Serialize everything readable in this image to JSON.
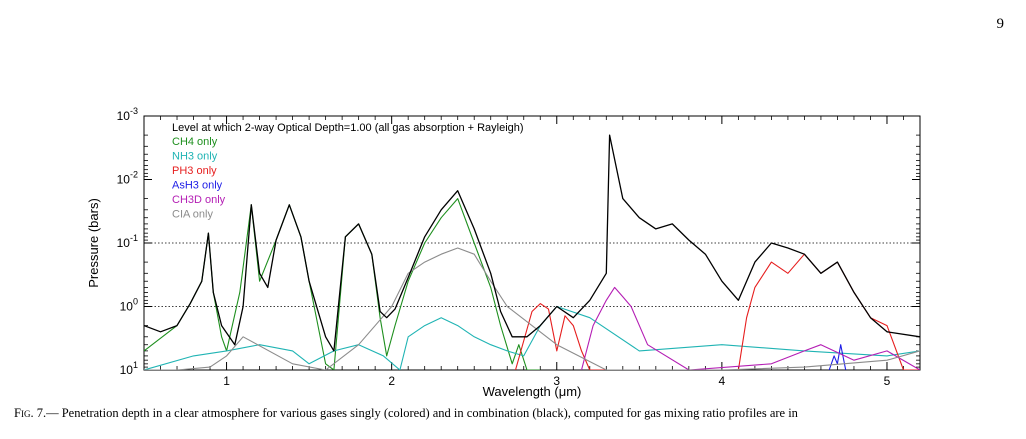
{
  "page": {
    "number": "9"
  },
  "figure": {
    "label": "Fig. 7.",
    "caption": "— Penetration depth in a clear atmosphere for various gases singly (colored) and in combination (black), computed for gas mixing ratio profiles are in"
  },
  "chart_data": {
    "type": "line",
    "title": "Level at which 2-way Optical Depth=1.00 (all gas absorption + Rayleigh)",
    "xlabel": "Wavelength (μm)",
    "ylabel": "Pressure (bars)",
    "xlim": [
      0.5,
      5.2
    ],
    "ylim": [
      10,
      0.001
    ],
    "y_scale": "log",
    "y_inverted": true,
    "grid": "dotted lines at 0.1 and 1 bar",
    "legend_position": "top-left",
    "x_ticks": [
      1,
      2,
      3,
      4,
      5
    ],
    "x_tick_labels": [
      "1",
      "2",
      "3",
      "4",
      "5"
    ],
    "y_ticks": [
      10,
      1,
      0.1,
      0.01,
      0.001
    ],
    "y_tick_labels": [
      {
        "base": "10",
        "exp": "1"
      },
      {
        "base": "10",
        "exp": "0"
      },
      {
        "base": "10",
        "exp": "-1"
      },
      {
        "base": "10",
        "exp": "-2"
      },
      {
        "base": "10",
        "exp": "-3"
      }
    ],
    "series": [
      {
        "name": "CH4 only",
        "color": "#1e8f1e",
        "x": [
          0.5,
          0.7,
          0.78,
          0.85,
          0.89,
          0.92,
          0.97,
          1.0,
          1.08,
          1.15,
          1.2,
          1.3,
          1.38,
          1.45,
          1.5,
          1.6,
          1.65,
          1.72,
          1.8,
          1.88,
          1.93,
          1.97,
          2.02,
          2.1,
          2.2,
          2.3,
          2.4,
          2.5,
          2.6,
          2.66,
          2.73,
          2.77,
          2.82,
          2.86,
          2.9
        ],
        "y": [
          5,
          2,
          0.9,
          0.4,
          0.07,
          0.6,
          3,
          5,
          0.6,
          0.025,
          0.4,
          0.09,
          0.025,
          0.08,
          0.4,
          8,
          10,
          0.08,
          0.05,
          0.15,
          1.5,
          6,
          2,
          0.4,
          0.1,
          0.04,
          0.02,
          0.1,
          0.5,
          2,
          8,
          4,
          10,
          10,
          10
        ]
      },
      {
        "name": "NH3 only",
        "color": "#20b4b4",
        "x": [
          0.5,
          0.8,
          1.0,
          1.2,
          1.4,
          1.5,
          1.65,
          1.8,
          1.95,
          2.05,
          2.1,
          2.2,
          2.3,
          2.4,
          2.5,
          2.6,
          2.7,
          2.8,
          2.9,
          3.0,
          3.2,
          3.5,
          4.0,
          4.5,
          5.0,
          5.2
        ],
        "y": [
          10,
          6,
          5,
          4,
          5,
          8,
          5,
          4,
          6,
          10,
          3,
          2,
          1.5,
          2,
          3,
          4,
          5,
          6,
          2,
          1,
          1.5,
          5,
          4,
          5,
          6,
          5
        ]
      },
      {
        "name": "PH3 only",
        "color": "#e61e1e",
        "x": [
          2.75,
          2.85,
          2.9,
          2.95,
          3.0,
          3.05,
          3.1,
          3.15,
          3.2,
          4.1,
          4.15,
          4.2,
          4.3,
          4.4,
          4.5,
          4.6,
          4.7,
          4.8,
          4.9,
          5.0,
          5.1,
          5.2
        ],
        "y": [
          10,
          1.2,
          0.9,
          1.1,
          5,
          1.4,
          2,
          5,
          10,
          10,
          1.5,
          0.5,
          0.2,
          0.3,
          0.15,
          0.3,
          0.2,
          0.6,
          1.5,
          2,
          10,
          10
        ]
      },
      {
        "name": "AsH3 only",
        "color": "#1e1ee6",
        "x": [
          4.65,
          4.68,
          4.7,
          4.72,
          4.75
        ],
        "y": [
          10,
          6,
          8,
          4,
          10
        ]
      },
      {
        "name": "CH3D only",
        "color": "#b41eb4",
        "x": [
          3.15,
          3.22,
          3.3,
          3.35,
          3.4,
          3.45,
          3.55,
          3.8,
          4.3,
          4.5,
          4.6,
          4.8,
          5.0,
          5.2
        ],
        "y": [
          10,
          2,
          0.8,
          0.5,
          0.7,
          1,
          4,
          10,
          8,
          5,
          4,
          7,
          5,
          10
        ]
      },
      {
        "name": "CIA only",
        "color": "#8c8c8c",
        "x": [
          0.5,
          0.7,
          0.9,
          1.0,
          1.1,
          1.4,
          1.6,
          1.8,
          2.0,
          2.1,
          2.2,
          2.3,
          2.4,
          2.5,
          2.6,
          2.7,
          3.0,
          3.3,
          3.6,
          4.0,
          4.5,
          5.0,
          5.2
        ],
        "y": [
          10,
          10,
          9,
          6,
          3,
          8,
          10,
          4,
          1,
          0.3,
          0.2,
          0.15,
          0.12,
          0.15,
          0.4,
          1,
          4,
          10,
          10,
          10,
          9,
          7,
          5
        ]
      },
      {
        "name": "",
        "color": "#000000",
        "x": [
          0.5,
          0.6,
          0.7,
          0.78,
          0.85,
          0.89,
          0.92,
          0.97,
          1.05,
          1.1,
          1.15,
          1.2,
          1.25,
          1.3,
          1.38,
          1.45,
          1.5,
          1.6,
          1.65,
          1.72,
          1.8,
          1.88,
          1.93,
          1.97,
          2.02,
          2.1,
          2.2,
          2.3,
          2.4,
          2.5,
          2.6,
          2.66,
          2.73,
          2.82,
          2.9,
          3.0,
          3.1,
          3.2,
          3.3,
          3.32,
          3.4,
          3.5,
          3.6,
          3.7,
          3.8,
          3.9,
          4.0,
          4.1,
          4.2,
          4.3,
          4.4,
          4.5,
          4.6,
          4.7,
          4.8,
          4.9,
          5.0,
          5.2
        ],
        "y": [
          2,
          2.5,
          2,
          0.9,
          0.4,
          0.07,
          0.6,
          2,
          4,
          1,
          0.025,
          0.3,
          0.5,
          0.09,
          0.025,
          0.08,
          0.4,
          3,
          5,
          0.08,
          0.05,
          0.15,
          1.2,
          1.5,
          1.1,
          0.35,
          0.08,
          0.03,
          0.015,
          0.06,
          0.3,
          1.2,
          3,
          3,
          2,
          1,
          1.5,
          0.8,
          0.3,
          0.002,
          0.02,
          0.04,
          0.06,
          0.05,
          0.09,
          0.15,
          0.4,
          0.8,
          0.2,
          0.1,
          0.12,
          0.15,
          0.3,
          0.2,
          0.6,
          1.5,
          2.5,
          3
        ]
      }
    ]
  }
}
